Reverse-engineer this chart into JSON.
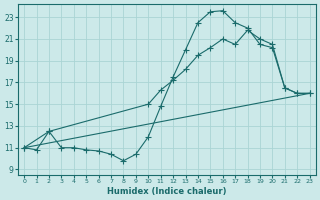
{
  "bg_color": "#cce9e9",
  "grid_color": "#aad4d4",
  "line_color": "#1a6b6b",
  "xlabel": "Humidex (Indice chaleur)",
  "xlim": [
    -0.5,
    23.5
  ],
  "ylim": [
    8.5,
    24.2
  ],
  "xticks": [
    0,
    1,
    2,
    3,
    4,
    5,
    6,
    7,
    8,
    9,
    10,
    11,
    12,
    13,
    14,
    15,
    16,
    17,
    18,
    19,
    20,
    21,
    22,
    23
  ],
  "yticks": [
    9,
    11,
    13,
    15,
    17,
    19,
    21,
    23
  ],
  "curve_x": [
    0,
    1,
    2,
    3,
    4,
    5,
    6,
    7,
    8,
    9,
    10,
    11,
    12,
    13,
    14,
    15,
    16,
    17,
    18,
    19,
    20,
    21,
    22,
    23
  ],
  "curve_y": [
    11.0,
    10.8,
    12.5,
    11.0,
    11.0,
    10.8,
    10.7,
    10.4,
    9.8,
    10.4,
    12.0,
    14.8,
    17.5,
    20.0,
    22.5,
    23.5,
    23.6,
    22.5,
    22.0,
    20.5,
    20.2,
    16.5,
    16.0,
    16.0
  ],
  "line2_x": [
    0,
    2,
    10,
    11,
    12,
    13,
    14,
    15,
    16,
    17,
    18,
    19,
    20,
    21,
    22,
    23
  ],
  "line2_y": [
    11.0,
    12.5,
    15.0,
    16.3,
    17.2,
    18.2,
    19.5,
    20.2,
    21.0,
    20.5,
    21.8,
    21.0,
    20.5,
    16.5,
    16.0,
    16.0
  ],
  "line3_x": [
    0,
    23
  ],
  "line3_y": [
    11.0,
    16.0
  ],
  "marker": "P",
  "marker_size": 2.5
}
